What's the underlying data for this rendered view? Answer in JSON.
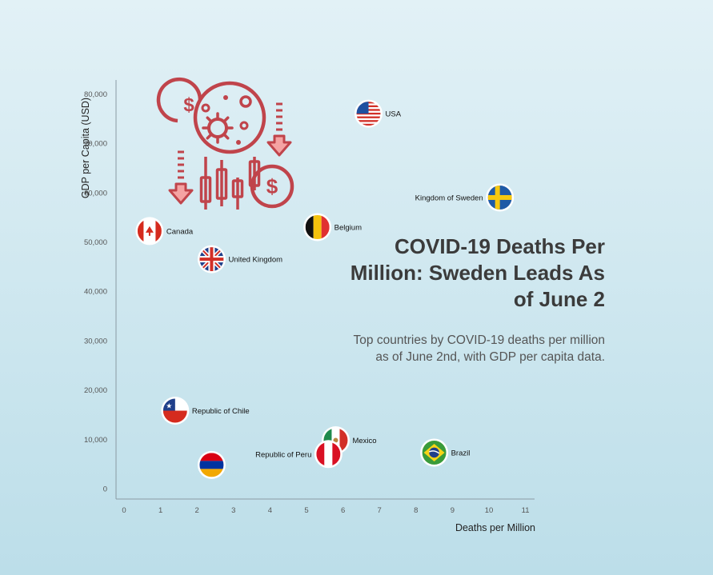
{
  "chart_data": {
    "type": "scatter",
    "title": "COVID-19 Deaths Per Million: Sweden Leads As of June 2",
    "subtitle": "Top countries by COVID-19 deaths per million as of June 2nd, with GDP per capita data.",
    "xlabel": "Deaths per Million",
    "ylabel": "GDP per Capita (USD)",
    "xlim": [
      -0.2,
      11.3
    ],
    "ylim": [
      -1000,
      83000
    ],
    "x_ticks": [
      "0",
      "1",
      "2",
      "3",
      "4",
      "5",
      "6",
      "7",
      "8",
      "9",
      "10",
      "11"
    ],
    "y_ticks": [
      {
        "v": 0,
        "label": "0"
      },
      {
        "v": 10000,
        "label": "10,000"
      },
      {
        "v": 20000,
        "label": "20,000"
      },
      {
        "v": 30000,
        "label": "30,000"
      },
      {
        "v": 40000,
        "label": "40,000"
      },
      {
        "v": 50000,
        "label": "50,000"
      },
      {
        "v": 60000,
        "label": "60,000"
      },
      {
        "v": 70000,
        "label": "70,000"
      },
      {
        "v": 80000,
        "label": "80,000"
      }
    ],
    "grid": false,
    "points": [
      {
        "label": "USA",
        "x": 6.7,
        "y": 76000,
        "flag": "usa-flag-icon"
      },
      {
        "label": "Kingdom of Sweden",
        "x": 10.3,
        "y": 59000,
        "flag": "sweden-flag-icon"
      },
      {
        "label": "Belgium",
        "x": 5.3,
        "y": 53000,
        "flag": "belgium-flag-icon"
      },
      {
        "label": "Canada",
        "x": 0.7,
        "y": 52200,
        "flag": "canada-flag-icon"
      },
      {
        "label": "United Kingdom",
        "x": 2.4,
        "y": 46500,
        "flag": "uk-flag-icon"
      },
      {
        "label": "Republic of Chile",
        "x": 1.4,
        "y": 15800,
        "flag": "chile-flag-icon"
      },
      {
        "label": "Mexico",
        "x": 5.8,
        "y": 9800,
        "flag": "mexico-flag-icon"
      },
      {
        "label": "Republic of Peru",
        "x": 5.6,
        "y": 7000,
        "flag": "peru-flag-icon"
      },
      {
        "label": "Brazil",
        "x": 8.5,
        "y": 7300,
        "flag": "brazil-flag-icon"
      },
      {
        "label": "",
        "x": 2.4,
        "y": 4800,
        "flag": "armenia-flag-icon"
      }
    ],
    "colors": {
      "axis": "#8a9aa3",
      "tick_text": "#555555",
      "title": "#3b3b3b",
      "icon_red": "#c0444b",
      "icon_pink": "#f5a3a3"
    },
    "decoration_icon": "covid-economy-icon"
  }
}
